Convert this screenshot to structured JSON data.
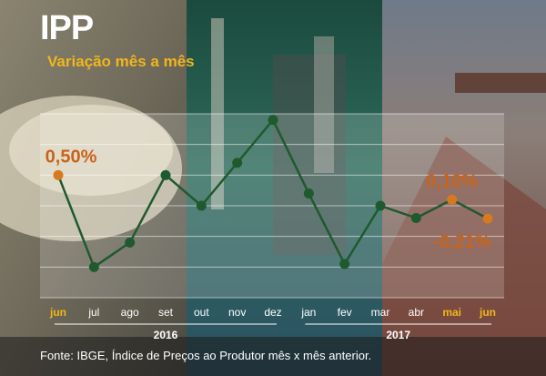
{
  "header": {
    "title": "IPP",
    "subtitle": "Variação mês a mês"
  },
  "footer": {
    "source": "Fonte: IBGE, Índice de Preços ao Produtor mês x mês anterior."
  },
  "colors": {
    "line": "#1f5a2e",
    "marker": "#1f5a2e",
    "highlight_marker": "#d7791e",
    "highlight_label": "#c8641a",
    "highlight_tick": "#f0b61c",
    "tick": "#ffffff",
    "accent_title": "#f0b61c"
  },
  "chart_data": {
    "type": "line",
    "title": "IPP",
    "subtitle": "Variação mês a mês",
    "xlabel": "",
    "ylabel": "",
    "categories": [
      "jun",
      "jul",
      "ago",
      "set",
      "out",
      "nov",
      "dez",
      "jan",
      "fev",
      "mar",
      "abr",
      "mai",
      "jun"
    ],
    "highlighted_categories": [
      0,
      11,
      12
    ],
    "year_groups": [
      {
        "label": "2016",
        "from": 0,
        "to": 6
      },
      {
        "label": "2017",
        "from": 7,
        "to": 12
      }
    ],
    "series": [
      {
        "values": [
          0.5,
          -1.0,
          -0.6,
          0.5,
          0.0,
          0.7,
          1.4,
          0.2,
          -0.95,
          0.0,
          -0.2,
          0.1,
          -0.21
        ]
      }
    ],
    "data_labels": [
      {
        "index": 0,
        "text": "0,50%"
      },
      {
        "index": 11,
        "text": "0,10%"
      },
      {
        "index": 12,
        "text": "-0,21%"
      }
    ],
    "ylim": [
      -1.5,
      1.5
    ],
    "grid": true,
    "legend": "none"
  }
}
